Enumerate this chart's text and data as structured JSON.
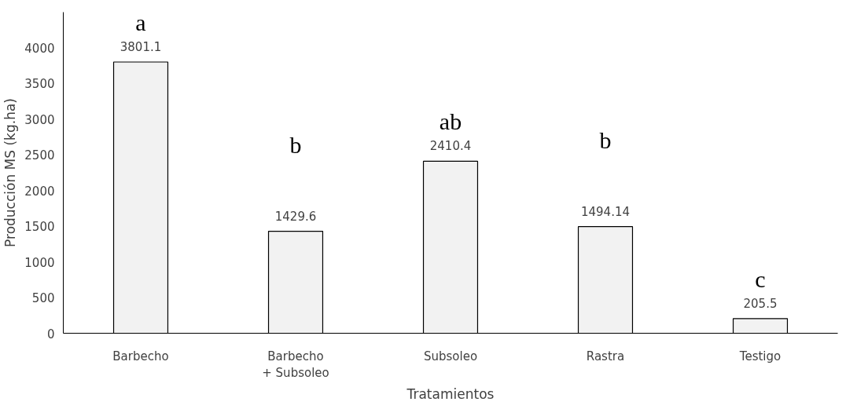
{
  "chart_data": {
    "type": "bar",
    "xlabel": "Tratamientos",
    "ylabel": "Producción MS (kg.ha)",
    "categories": [
      "Barbecho",
      "Barbecho + Subsoleo",
      "Subsoleo",
      "Rastra",
      "Testigo"
    ],
    "values": [
      3801.1,
      1429.6,
      2410.4,
      1494.14,
      205.5
    ],
    "color": "#f2f2f2",
    "ylim": [
      0,
      4500
    ],
    "yticks": [
      0,
      500,
      1000,
      1500,
      2000,
      2500,
      3000,
      3500,
      4000
    ],
    "grid": false,
    "data_labels": true,
    "annotations": [
      "a",
      "b",
      "ab",
      "b",
      "c"
    ]
  }
}
